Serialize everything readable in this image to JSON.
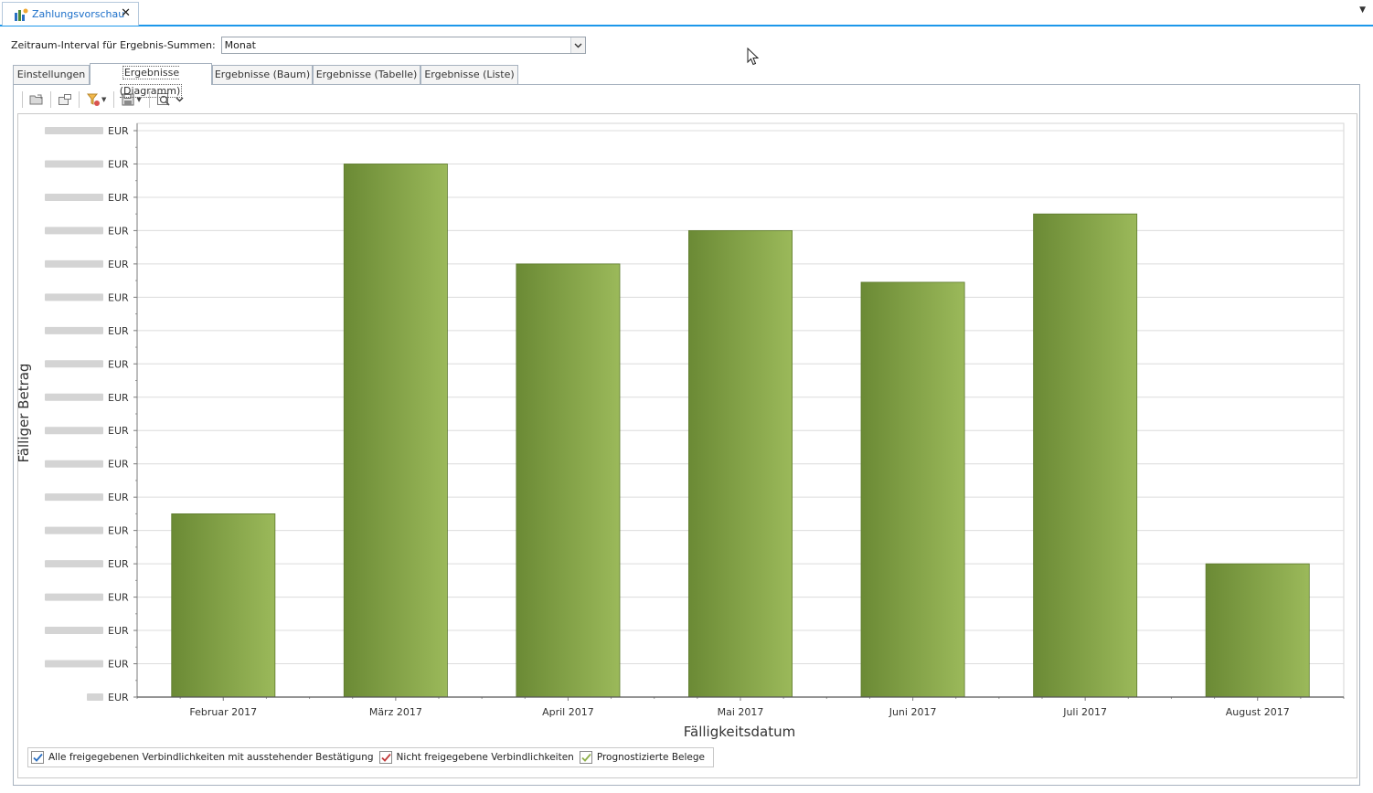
{
  "document_tab": {
    "title": "Zahlungsvorschau",
    "close_glyph": "✕"
  },
  "interval": {
    "label": "Zeitraum-Interval für Ergebnis-Summen:",
    "value": "Monat"
  },
  "tabs": [
    {
      "label": "Einstellungen",
      "active": false
    },
    {
      "label": "Ergebnisse (Diagramm)",
      "active": true
    },
    {
      "label": "Ergebnisse (Baum)",
      "active": false
    },
    {
      "label": "Ergebnisse (Tabelle)",
      "active": false
    },
    {
      "label": "Ergebnisse (Liste)",
      "active": false
    }
  ],
  "toolbar": {
    "icons": [
      "open-folder-icon",
      "window-icon",
      "filter-icon",
      "save-icon",
      "zoom-icon"
    ]
  },
  "chart_data": {
    "type": "bar",
    "categories": [
      "Februar 2017",
      "März 2017",
      "April 2017",
      "Mai 2017",
      "Juni 2017",
      "Juli 2017",
      "August 2017"
    ],
    "values": [
      5.5,
      16,
      13,
      14,
      12.45,
      14.5,
      4
    ],
    "ylim": [
      0,
      17
    ],
    "y_tick_unit": "EUR",
    "y_tick_count": 18,
    "y_tick_values_redacted": true,
    "xlabel": "Fälligkeitsdatum",
    "ylabel": "Fälliger Betrag",
    "bar_color_dark": "#6b8a35",
    "bar_color_light": "#9bb95a",
    "grid": true,
    "legend_position": "bottom-left"
  },
  "legend": [
    {
      "label": "Alle freigegebenen Verbindlichkeiten mit ausstehender Bestätigung",
      "checked": true,
      "check_color": "#2a6fc2"
    },
    {
      "label": "Nicht freigegebene Verbindlichkeiten",
      "checked": true,
      "check_color": "#c23a3a"
    },
    {
      "label": "Prognostizierte Belege",
      "checked": true,
      "check_color": "#8fb04a"
    }
  ]
}
